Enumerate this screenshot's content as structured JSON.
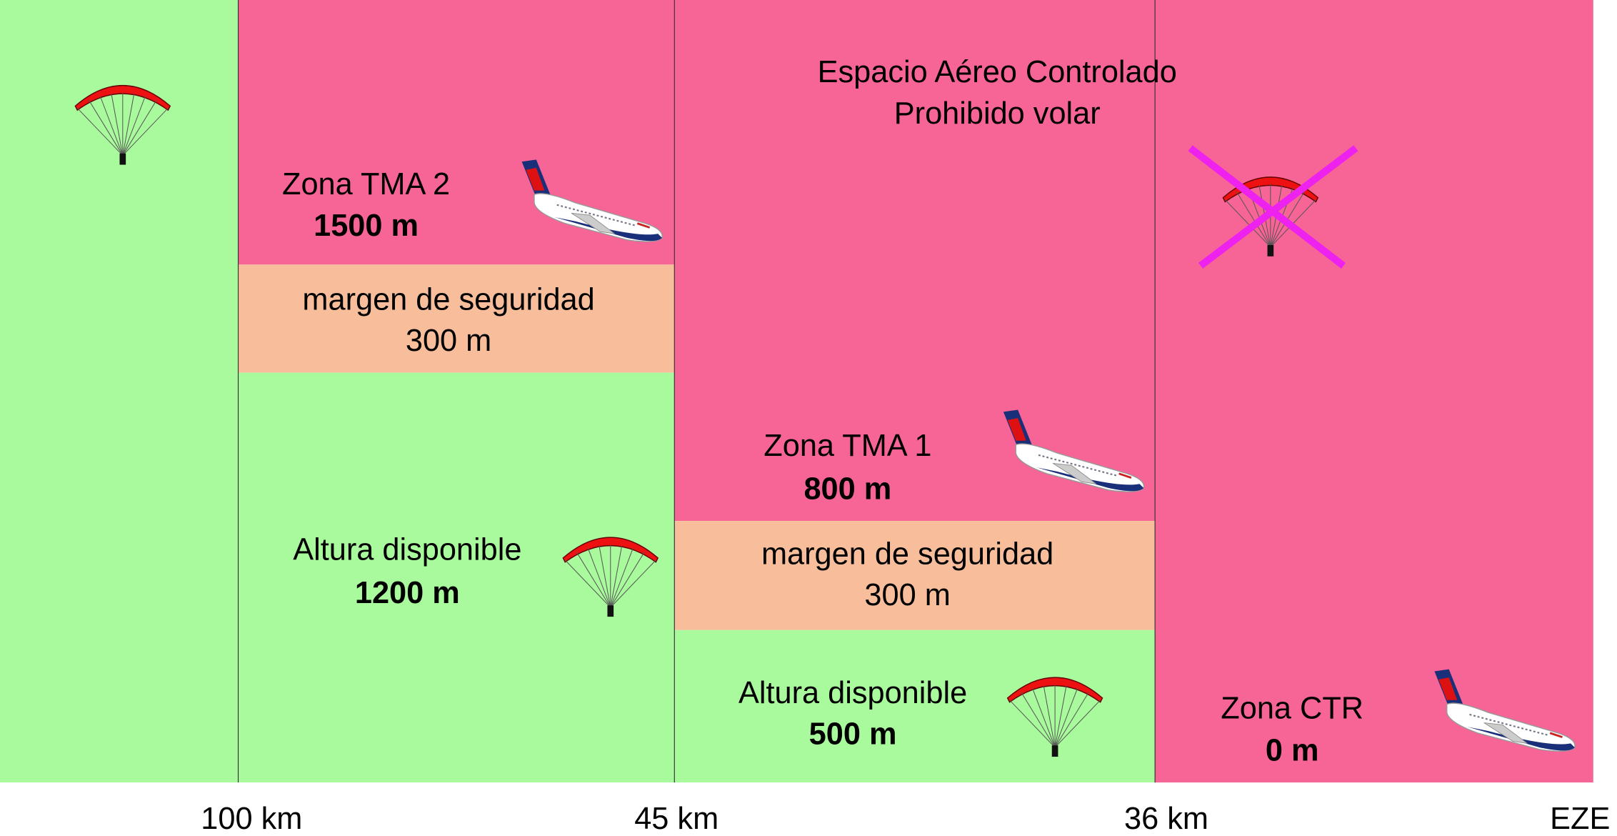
{
  "header": {
    "line1": "Espacio Aéreo Controlado",
    "line2": "Prohibido volar"
  },
  "zones": [
    {
      "name": "Zona TMA 2",
      "height": "1500 m"
    },
    {
      "name": "Zona TMA 1",
      "height": "800 m"
    },
    {
      "name": "Zona CTR",
      "height": "0 m"
    }
  ],
  "margins": [
    {
      "label": "margen de seguridad",
      "height": "300 m"
    },
    {
      "label": "margen de seguridad",
      "height": "300 m"
    }
  ],
  "available": [
    {
      "label": "Altura disponible",
      "height": "1200 m"
    },
    {
      "label": "Altura disponible",
      "height": "500 m"
    }
  ],
  "distances": [
    "100 km",
    "45 km",
    "36 km",
    "EZE"
  ]
}
